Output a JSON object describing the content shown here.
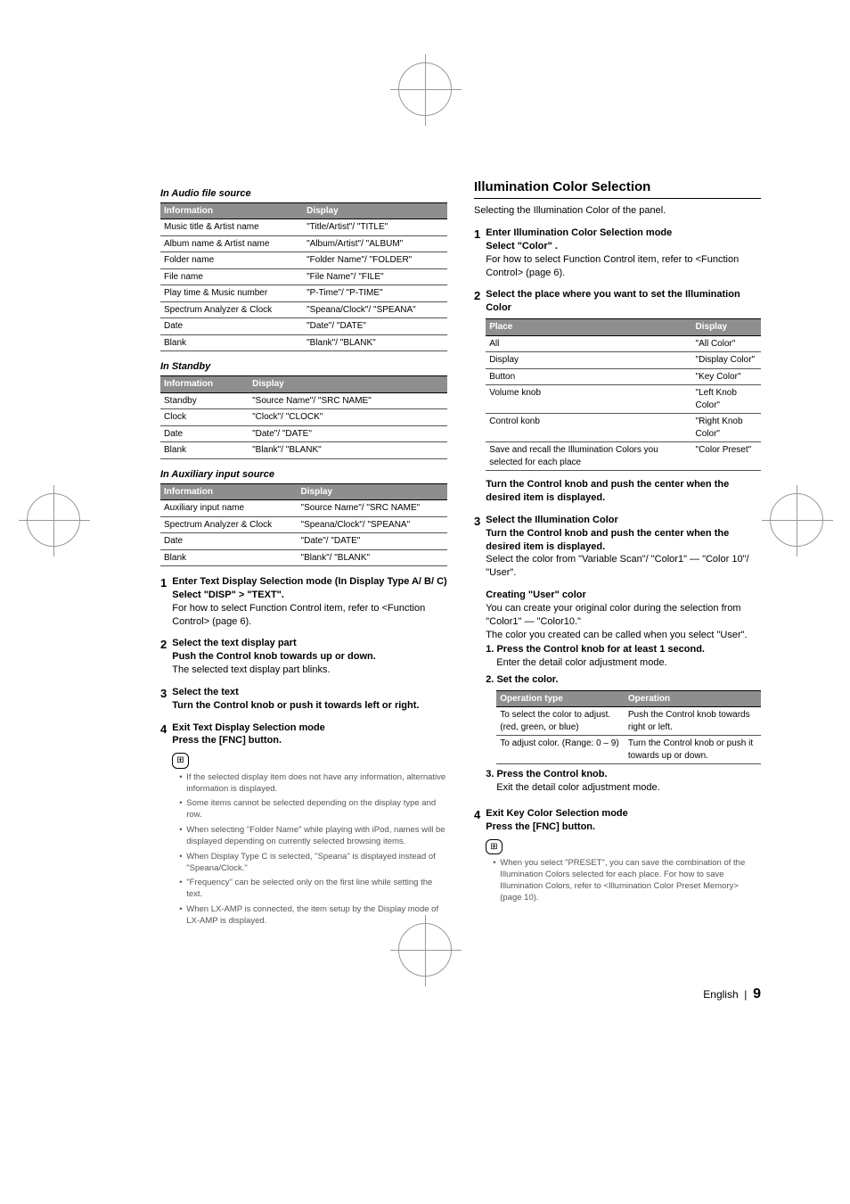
{
  "left": {
    "audio_file": {
      "heading": "In Audio file source",
      "th1": "Information",
      "th2": "Display",
      "rows": [
        [
          "Music title & Artist name",
          "\"Title/Artist\"/ \"TITLE\""
        ],
        [
          "Album name & Artist name",
          "\"Album/Artist\"/ \"ALBUM\""
        ],
        [
          "Folder name",
          "\"Folder Name\"/ \"FOLDER\""
        ],
        [
          "File name",
          "\"File Name\"/ \"FILE\""
        ],
        [
          "Play time & Music number",
          "\"P-Time\"/ \"P-TIME\""
        ],
        [
          "Spectrum Analyzer & Clock",
          "\"Speana/Clock\"/ \"SPEANA\""
        ],
        [
          "Date",
          "\"Date\"/ \"DATE\""
        ],
        [
          "Blank",
          "\"Blank\"/ \"BLANK\""
        ]
      ]
    },
    "standby": {
      "heading": "In Standby",
      "th1": "Information",
      "th2": "Display",
      "rows": [
        [
          "Standby",
          "\"Source Name\"/ \"SRC NAME\""
        ],
        [
          "Clock",
          "\"Clock\"/ \"CLOCK\""
        ],
        [
          "Date",
          "\"Date\"/ \"DATE\""
        ],
        [
          "Blank",
          "\"Blank\"/ \"BLANK\""
        ]
      ]
    },
    "aux": {
      "heading": "In Auxiliary input source",
      "th1": "Information",
      "th2": "Display",
      "rows": [
        [
          "Auxiliary input name",
          "\"Source Name\"/ \"SRC NAME\""
        ],
        [
          "Spectrum Analyzer & Clock",
          "\"Speana/Clock\"/ \"SPEANA\""
        ],
        [
          "Date",
          "\"Date\"/ \"DATE\""
        ],
        [
          "Blank",
          "\"Blank\"/ \"BLANK\""
        ]
      ]
    },
    "steps": {
      "s1_lead": "Enter Text Display Selection mode (In Display Type A/ B/ C)",
      "s1_sel": "Select \"DISP\" > \"TEXT\".",
      "s1_reg": "For how to select Function Control item, refer to <Function Control> (page 6).",
      "s2_lead": "Select the text display part",
      "s2_bold": "Push the Control knob towards up or down.",
      "s2_reg": "The selected text display part blinks.",
      "s3_lead": "Select the text",
      "s3_bold": "Turn the Control knob or push it towards left or right.",
      "s4_lead": "Exit Text Display Selection mode",
      "s4_bold": "Press the [FNC] button."
    },
    "notes": [
      "If the selected display item does not have any information, alternative information is displayed.",
      "Some items cannot be selected depending on the display type and row.",
      "When selecting \"Folder Name\" while playing with iPod, names will be displayed depending on currently selected browsing items.",
      "When Display Type C is selected, \"Speana\" is displayed instead of \"Speana/Clock.\"",
      "\"Frequency\" can be selected only on the first line while setting the text.",
      "When LX-AMP is connected, the item setup by the Display mode of LX-AMP is displayed."
    ]
  },
  "right": {
    "title": "Illumination Color Selection",
    "intro": "Selecting the Illumination Color of the panel.",
    "s1_lead": "Enter Illumination Color Selection mode",
    "s1_sel": "Select \"Color\" .",
    "s1_reg": "For how to select Function Control item, refer to <Function Control> (page 6).",
    "s2_lead": "Select the place where you want to set the Illumination Color",
    "place_table": {
      "th1": "Place",
      "th2": "Display",
      "rows": [
        [
          "All",
          "\"All Color\""
        ],
        [
          "Display",
          "\"Display Color\""
        ],
        [
          "Button",
          "\"Key Color\""
        ],
        [
          "Volume knob",
          "\"Left Knob Color\""
        ],
        [
          "Control konb",
          "\"Right Knob Color\""
        ],
        [
          "Save and recall the Illumination Colors you selected for each place",
          "\"Color Preset\""
        ]
      ]
    },
    "s2_after": "Turn the Control knob and push the center when the desired item is displayed.",
    "s3_lead": "Select the Illumination Color",
    "s3_bold": "Turn the Control knob and push the center when the desired item is displayed.",
    "s3_reg": "Select the color from \"Variable Scan\"/ \"Color1\" — \"Color 10\"/ \"User\".",
    "create_h": "Creating \"User\" color",
    "create_p1": "You can create your original color during the selection from \"Color1\" — \"Color10.\"",
    "create_p2": "The color you created can be called when you select \"User\".",
    "ol1_t": "Press the Control knob for at least 1 second.",
    "ol1_d": "Enter the detail color adjustment mode.",
    "ol2_t": "Set the color.",
    "op_table": {
      "th1": "Operation type",
      "th2": "Operation",
      "rows": [
        [
          "To select the color to adjust. (red, green, or blue)",
          "Push the Control knob towards right or left."
        ],
        [
          "To adjust color. (Range: 0 – 9)",
          "Turn the Control knob or push it towards up or down."
        ]
      ]
    },
    "ol3_t": "Press the Control knob.",
    "ol3_d": "Exit the detail color adjustment mode.",
    "s4_lead": "Exit Key Color Selection mode",
    "s4_bold": "Press the [FNC] button.",
    "notes": [
      "When you select \"PRESET\", you can save the combination of the Illumination Colors selected for each place. For how to save Illumination Colors, refer to <Illumination Color Preset Memory> (page 10)."
    ]
  },
  "footer": {
    "lang": "English",
    "sep": "|",
    "page": "9"
  },
  "icon": "⊞"
}
